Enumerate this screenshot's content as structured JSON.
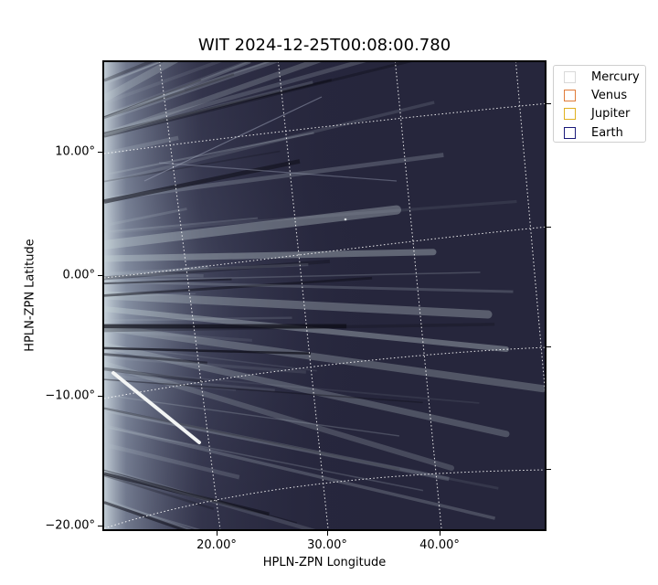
{
  "title": "WIT 2024-12-25T00:08:00.780",
  "axes": {
    "xlabel": "HPLN-ZPN Longitude",
    "ylabel": "HPLN-ZPN Latitude",
    "x_ticks": [
      "20.00°",
      "30.00°",
      "40.00°"
    ],
    "y_ticks": [
      "10.00°",
      "0.00°",
      "−10.00°",
      "−20.00°"
    ]
  },
  "legend": [
    {
      "name": "Mercury",
      "color": "#d9d9d9"
    },
    {
      "name": "Venus",
      "color": "#e07b39"
    },
    {
      "name": "Jupiter",
      "color": "#e0b020"
    },
    {
      "name": "Earth",
      "color": "#1a1a7a"
    }
  ],
  "colors": {
    "background": "#24243a",
    "streamer": "#c8d6d8",
    "grid": "#ffffff"
  }
}
